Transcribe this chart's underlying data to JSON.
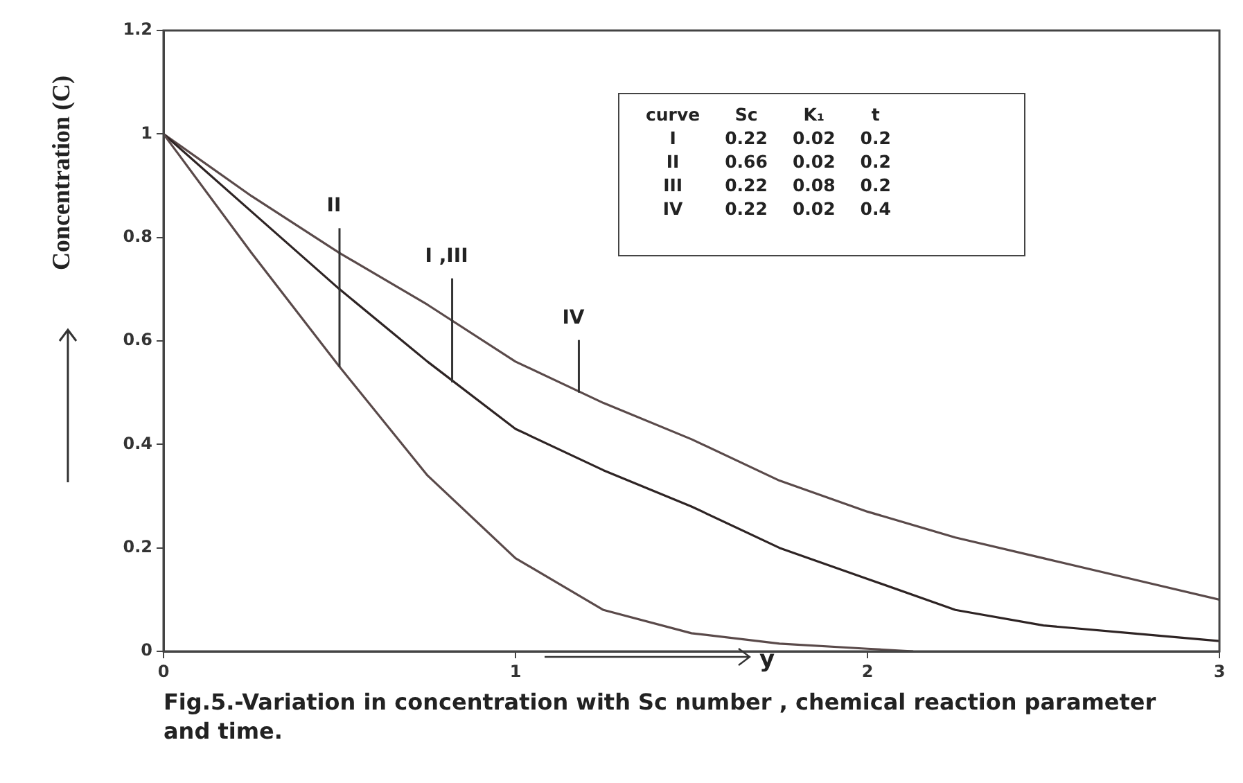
{
  "chart_data": {
    "type": "line",
    "title": "Fig.5.-Variation in concentration with Sc number , chemical reaction parameter and time.",
    "xlabel": "y",
    "ylabel": "Concentration (C)",
    "xlim": [
      0,
      3
    ],
    "xticks": [
      0,
      1,
      2,
      3
    ],
    "ylim": [
      0,
      1.2
    ],
    "yticks": [
      0,
      0.2,
      0.4,
      0.6,
      0.8,
      1,
      1.2
    ],
    "grid": false,
    "legend": false,
    "marker": "none",
    "line_style": "solid",
    "series": [
      {
        "color": "#5a4a4a",
        "x": [
          0,
          0.25,
          0.5,
          0.75,
          1,
          1.25,
          1.5,
          1.75,
          2,
          2.13
        ],
        "values": [
          1,
          0.77,
          0.55,
          0.34,
          0.18,
          0.08,
          0.035,
          0.015,
          0.005,
          0
        ]
      },
      {
        "color": "#2e2424",
        "x": [
          0,
          0.25,
          0.5,
          0.75,
          1,
          1.25,
          1.5,
          1.75,
          2,
          2.25,
          2.5,
          2.75,
          3
        ],
        "values": [
          1,
          0.85,
          0.7,
          0.56,
          0.43,
          0.35,
          0.28,
          0.2,
          0.14,
          0.08,
          0.05,
          0.035,
          0.02
        ]
      },
      {
        "color": "#5a4a4a",
        "x": [
          0,
          0.25,
          0.5,
          0.75,
          1,
          1.25,
          1.5,
          1.75,
          2,
          2.25,
          2.5,
          2.75,
          3
        ],
        "values": [
          1,
          0.88,
          0.77,
          0.67,
          0.56,
          0.48,
          0.41,
          0.33,
          0.27,
          0.22,
          0.18,
          0.14,
          0.1
        ]
      }
    ],
    "annotations": [
      {
        "text": "II",
        "x": 0.5,
        "y": 0.55
      },
      {
        "text": "I ,III",
        "x": 0.82,
        "y": 0.52
      },
      {
        "text": "IV",
        "x": 1.18,
        "y": 0.5
      },
      "curve",
      "Sc",
      "K₁",
      "t",
      "I",
      "0.22",
      "0.02",
      "0.2",
      "II",
      "0.66",
      "0.02",
      "0.2",
      "III",
      "0.22",
      "0.08",
      "0.2",
      "IV",
      "0.22",
      "0.02",
      "0.4"
    ]
  }
}
